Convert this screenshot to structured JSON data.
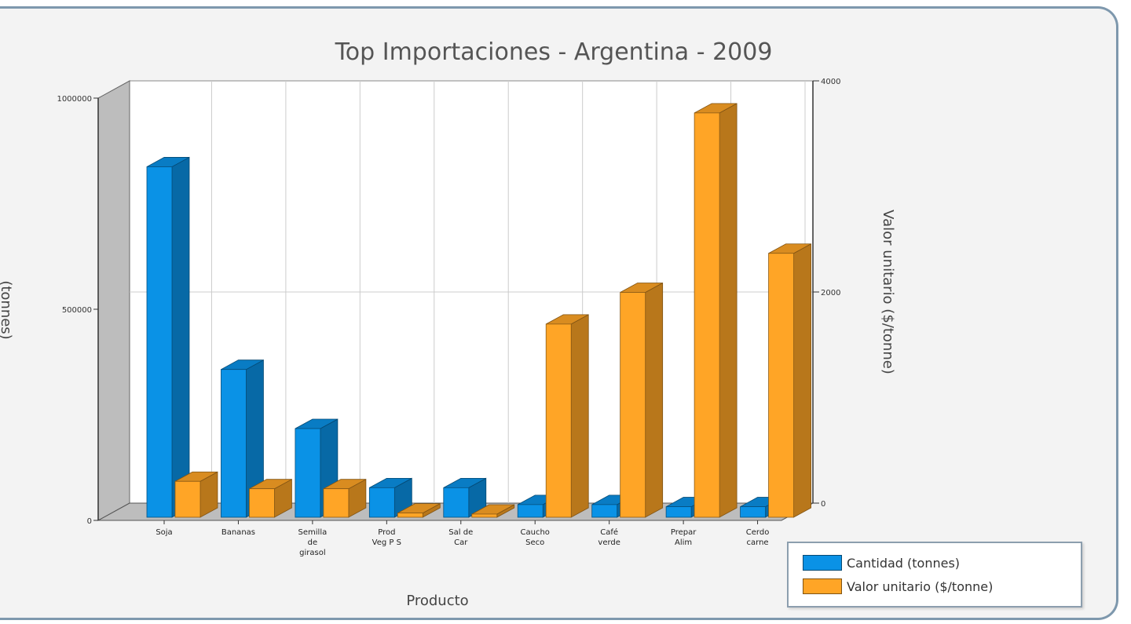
{
  "chart_data": {
    "type": "bar",
    "title": "Top Importaciones - Argentina - 2009",
    "xlabel": "Producto",
    "ylabel": "(tonnes)",
    "y2label": "Valor unitario  ($/tonne)",
    "categories": [
      [
        "Soja"
      ],
      [
        "Bananas"
      ],
      [
        "Semilla",
        "de",
        "girasol"
      ],
      [
        "Prod",
        "Veg P S"
      ],
      [
        "Sal de",
        "Car"
      ],
      [
        "Caucho",
        "Seco"
      ],
      [
        "Café",
        "verde"
      ],
      [
        "Prepar",
        "Alim"
      ],
      [
        "Cerdo",
        "carne"
      ]
    ],
    "yticks": [
      "0",
      "500000",
      "1000000"
    ],
    "y2ticks": [
      "0",
      "2000",
      "4000"
    ],
    "ylim": [
      0,
      1000000
    ],
    "y2lim": [
      0,
      4000
    ],
    "grid": true,
    "legend_position": "bottom-right",
    "series": [
      {
        "name": "Cantidad (tonnes)",
        "axis": "left",
        "color": "#0a92e6",
        "values": [
          830000,
          350000,
          210000,
          70000,
          70000,
          30000,
          30000,
          25000,
          25000
        ]
      },
      {
        "name": "Valor unitario  ($/tonne)",
        "axis": "right",
        "color": "#ffa526",
        "values": [
          340,
          270,
          270,
          40,
          30,
          1830,
          2130,
          3830,
          2500
        ]
      }
    ]
  }
}
